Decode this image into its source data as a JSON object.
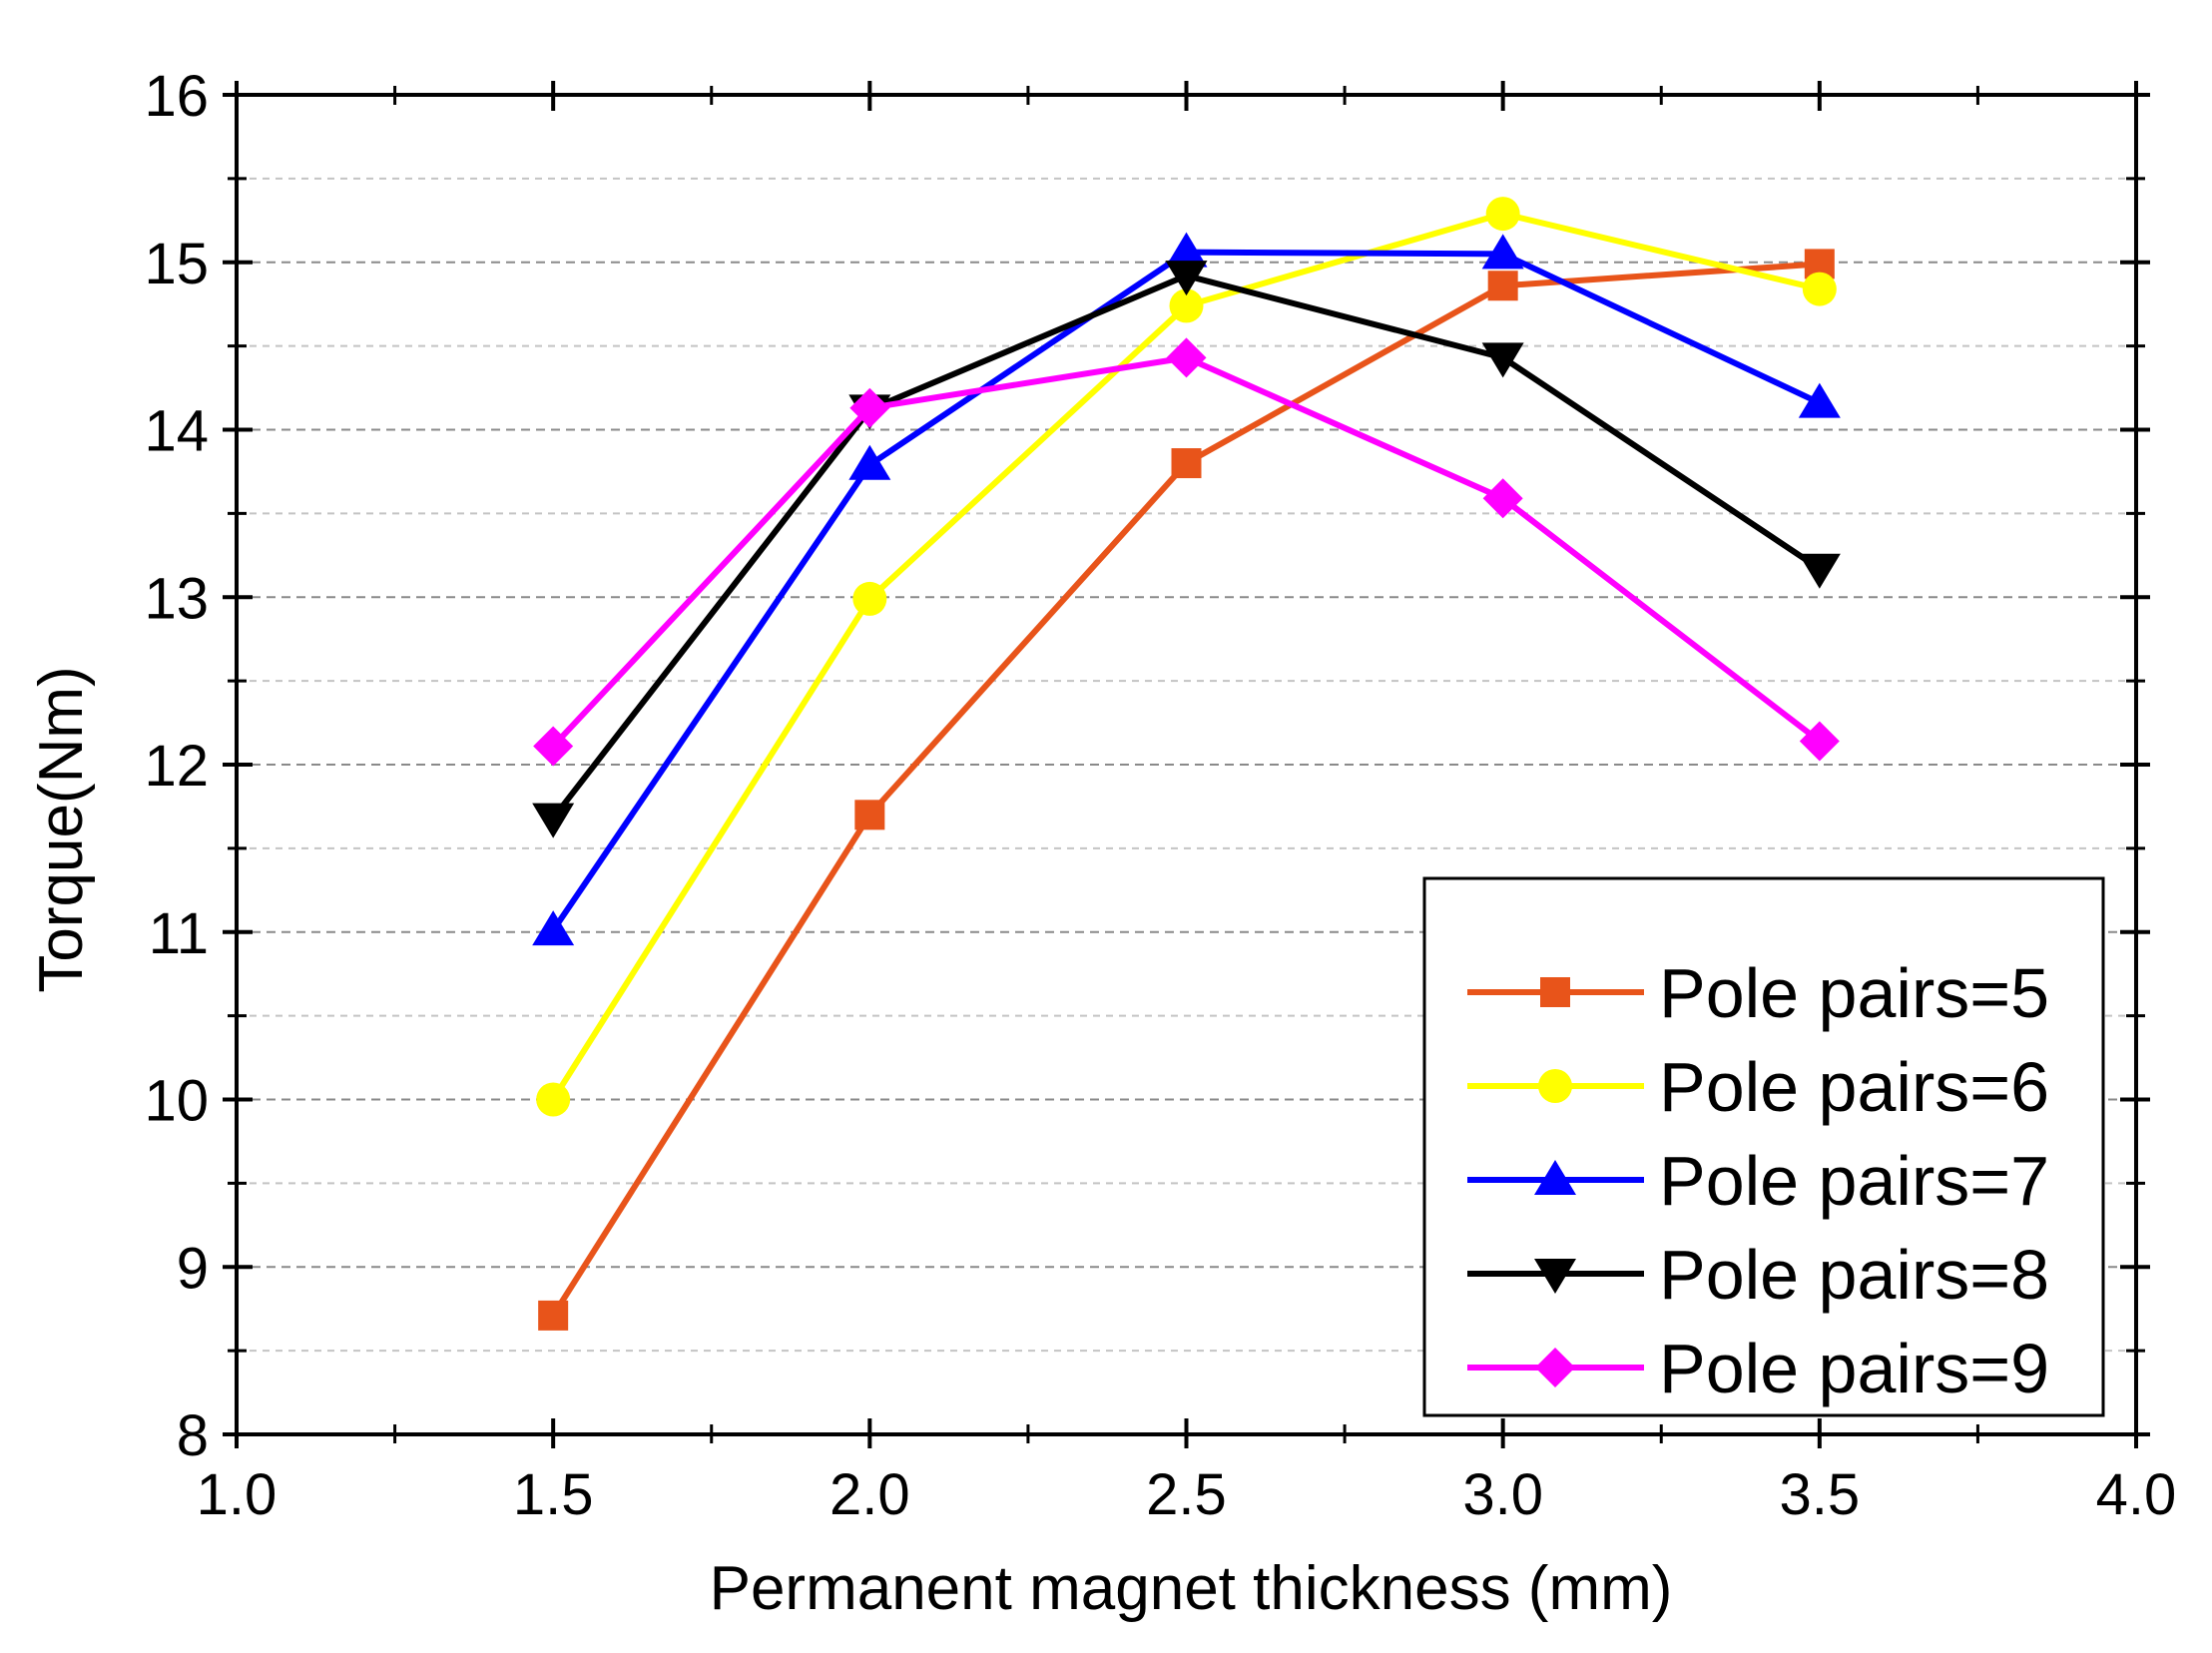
{
  "chart_data": {
    "type": "line",
    "title": "",
    "xlabel": "Permanent magnet thickness (mm)",
    "ylabel": "Torque(Nm)",
    "xlim": [
      1.0,
      4.0
    ],
    "ylim": [
      8,
      16
    ],
    "x_ticks": [
      1.0,
      1.5,
      2.0,
      2.5,
      3.0,
      3.5,
      4.0
    ],
    "x_tick_labels": [
      "1.0",
      "1.5",
      "2.0",
      "2.5",
      "3.0",
      "3.5",
      "4.0"
    ],
    "y_ticks": [
      8,
      9,
      10,
      11,
      12,
      13,
      14,
      15,
      16
    ],
    "y_tick_labels": [
      "8",
      "9",
      "10",
      "11",
      "12",
      "13",
      "14",
      "15",
      "16"
    ],
    "grid": true,
    "legend_position": "bottom-right",
    "x": [
      1.5,
      2.0,
      2.5,
      3.0,
      3.5
    ],
    "series": [
      {
        "name": "Pole pairs=5",
        "color": "#E8541A",
        "marker": "square",
        "values": [
          8.71,
          11.7,
          13.8,
          14.86,
          14.99
        ]
      },
      {
        "name": "Pole pairs=6",
        "color": "#FFFF00",
        "marker": "circle",
        "values": [
          10.0,
          12.99,
          14.74,
          15.29,
          14.84
        ]
      },
      {
        "name": "Pole pairs=7",
        "color": "#0000FF",
        "marker": "triangle-up",
        "values": [
          11.01,
          13.79,
          15.06,
          15.05,
          14.16
        ]
      },
      {
        "name": "Pole pairs=8",
        "color": "#000000",
        "marker": "triangle-down",
        "values": [
          11.68,
          14.12,
          14.92,
          14.43,
          13.17
        ]
      },
      {
        "name": "Pole pairs=9",
        "color": "#FF00FF",
        "marker": "diamond",
        "values": [
          12.11,
          14.13,
          14.43,
          13.59,
          12.14
        ]
      }
    ]
  }
}
